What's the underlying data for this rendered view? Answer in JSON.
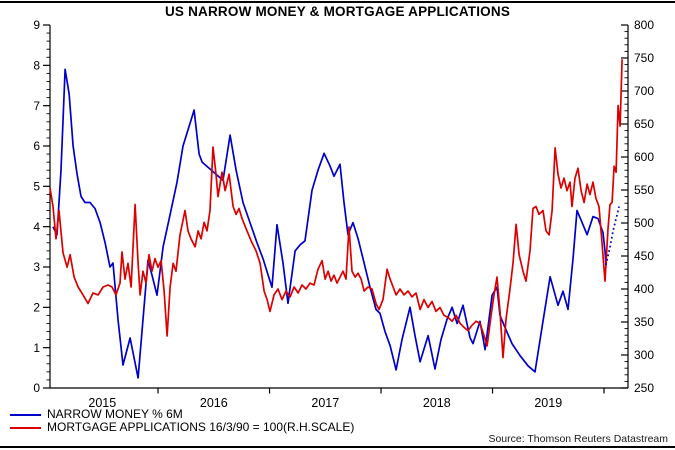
{
  "title": "US NARROW MONEY & MORTGAGE APPLICATIONS",
  "source_note": "Source: Thomson Reuters Datastream",
  "legend": [
    {
      "label": "NARROW MONEY % 6M",
      "color": "#0000cc",
      "line_style": "solid"
    },
    {
      "label": "MORTGAGE APPLICATIONS 16/3/90 = 100(R.H.SCALE)",
      "color": "#dd0000",
      "line_style": "solid"
    }
  ],
  "chart_data": {
    "type": "line",
    "title": "US NARROW MONEY & MORTGAGE APPLICATIONS",
    "grid": false,
    "legend_position": "bottom-left",
    "x_domain": [
      2015.031,
      2020.215
    ],
    "x_axis": {
      "boundary_tick_years": [
        2016,
        2017,
        2018,
        2019,
        2020
      ],
      "year_labels": [
        {
          "label": "2015",
          "center": 2015.5
        },
        {
          "label": "2016",
          "center": 2016.5
        },
        {
          "label": "2017",
          "center": 2017.5
        },
        {
          "label": "2018",
          "center": 2018.5
        },
        {
          "label": "2019",
          "center": 2019.5
        }
      ]
    },
    "left_axis": {
      "min": 0,
      "max": 9,
      "ticks": [
        0,
        1,
        2,
        3,
        4,
        5,
        6,
        7,
        8,
        9
      ],
      "minor_step": 0.2
    },
    "right_axis": {
      "min": 250,
      "max": 800,
      "ticks": [
        250,
        300,
        350,
        400,
        450,
        500,
        550,
        600,
        650,
        700,
        750,
        800
      ],
      "minor_step": 10
    },
    "series": [
      {
        "name": "NARROW MONEY % 6M",
        "axis": "left",
        "color": "#0000cc",
        "points": [
          [
            2015.058,
            4.0
          ],
          [
            2015.094,
            3.8
          ],
          [
            2015.13,
            5.4
          ],
          [
            2015.166,
            7.9
          ],
          [
            2015.202,
            7.3
          ],
          [
            2015.238,
            6.0
          ],
          [
            2015.274,
            5.3
          ],
          [
            2015.309,
            4.75
          ],
          [
            2015.345,
            4.6
          ],
          [
            2015.39,
            4.6
          ],
          [
            2015.435,
            4.45
          ],
          [
            2015.48,
            4.1
          ],
          [
            2015.525,
            3.6
          ],
          [
            2015.569,
            3.0
          ],
          [
            2015.596,
            3.1
          ],
          [
            2015.641,
            1.7
          ],
          [
            2015.686,
            0.57
          ],
          [
            2015.749,
            1.24
          ],
          [
            2015.821,
            0.25
          ],
          [
            2015.865,
            1.7
          ],
          [
            2015.91,
            3.17
          ],
          [
            2015.946,
            2.8
          ],
          [
            2015.991,
            2.3
          ],
          [
            2016.045,
            3.5
          ],
          [
            2016.108,
            4.3
          ],
          [
            2016.17,
            5.1
          ],
          [
            2016.224,
            6.0
          ],
          [
            2016.269,
            6.4
          ],
          [
            2016.323,
            6.89
          ],
          [
            2016.368,
            5.8
          ],
          [
            2016.395,
            5.6
          ],
          [
            2016.583,
            5.15
          ],
          [
            2016.646,
            6.27
          ],
          [
            2016.7,
            5.4
          ],
          [
            2016.762,
            4.6
          ],
          [
            2016.825,
            4.1
          ],
          [
            2016.888,
            3.6
          ],
          [
            2016.942,
            3.2
          ],
          [
            2016.987,
            2.8
          ],
          [
            2017.022,
            2.5
          ],
          [
            2017.067,
            4.05
          ],
          [
            2017.121,
            3.1
          ],
          [
            2017.166,
            2.1
          ],
          [
            2017.229,
            3.4
          ],
          [
            2017.274,
            3.55
          ],
          [
            2017.318,
            3.65
          ],
          [
            2017.381,
            4.9
          ],
          [
            2017.435,
            5.4
          ],
          [
            2017.489,
            5.82
          ],
          [
            2017.543,
            5.5
          ],
          [
            2017.578,
            5.25
          ],
          [
            2017.632,
            5.55
          ],
          [
            2017.668,
            4.6
          ],
          [
            2017.704,
            3.8
          ],
          [
            2017.749,
            4.1
          ],
          [
            2017.794,
            3.7
          ],
          [
            2017.839,
            3.2
          ],
          [
            2017.901,
            2.5
          ],
          [
            2017.955,
            1.95
          ],
          [
            2017.991,
            1.85
          ],
          [
            2018.036,
            1.4
          ],
          [
            2018.081,
            1.05
          ],
          [
            2018.135,
            0.45
          ],
          [
            2018.188,
            1.2
          ],
          [
            2018.26,
            2.0
          ],
          [
            2018.305,
            1.3
          ],
          [
            2018.35,
            0.65
          ],
          [
            2018.422,
            1.3
          ],
          [
            2018.484,
            0.47
          ],
          [
            2018.538,
            1.2
          ],
          [
            2018.592,
            1.7
          ],
          [
            2018.637,
            2.0
          ],
          [
            2018.682,
            1.6
          ],
          [
            2018.735,
            2.05
          ],
          [
            2018.798,
            1.25
          ],
          [
            2018.825,
            1.1
          ],
          [
            2018.888,
            1.65
          ],
          [
            2018.933,
            0.95
          ],
          [
            2018.996,
            2.3
          ],
          [
            2019.04,
            2.5
          ],
          [
            2019.067,
            1.8
          ],
          [
            2019.112,
            1.5
          ],
          [
            2019.175,
            1.1
          ],
          [
            2019.247,
            0.8
          ],
          [
            2019.318,
            0.55
          ],
          [
            2019.381,
            0.4
          ],
          [
            2019.444,
            1.5
          ],
          [
            2019.516,
            2.76
          ],
          [
            2019.587,
            2.05
          ],
          [
            2019.632,
            2.4
          ],
          [
            2019.677,
            1.95
          ],
          [
            2019.722,
            3.2
          ],
          [
            2019.758,
            4.4
          ],
          [
            2019.803,
            4.1
          ],
          [
            2019.848,
            3.8
          ],
          [
            2019.901,
            4.25
          ],
          [
            2019.946,
            4.2
          ],
          [
            2019.991,
            3.85
          ],
          [
            2020.009,
            3.4
          ],
          [
            2020.018,
            3.05
          ]
        ],
        "forecast_dotted_points": [
          [
            2020.018,
            3.05
          ],
          [
            2020.054,
            3.5
          ],
          [
            2020.081,
            3.9
          ],
          [
            2020.108,
            4.2
          ],
          [
            2020.135,
            4.5
          ]
        ]
      },
      {
        "name": "MORTGAGE APPLICATIONS 16/3/90 = 100(R.H.SCALE)",
        "axis": "right",
        "color": "#dd0000",
        "points": [
          [
            2015.031,
            553
          ],
          [
            2015.058,
            525
          ],
          [
            2015.085,
            476
          ],
          [
            2015.112,
            519
          ],
          [
            2015.148,
            455
          ],
          [
            2015.184,
            433
          ],
          [
            2015.211,
            452
          ],
          [
            2015.247,
            418
          ],
          [
            2015.283,
            403
          ],
          [
            2015.327,
            391
          ],
          [
            2015.372,
            378
          ],
          [
            2015.417,
            394
          ],
          [
            2015.462,
            391
          ],
          [
            2015.507,
            403
          ],
          [
            2015.551,
            406
          ],
          [
            2015.587,
            403
          ],
          [
            2015.623,
            391
          ],
          [
            2015.659,
            409
          ],
          [
            2015.677,
            456
          ],
          [
            2015.704,
            415
          ],
          [
            2015.731,
            439
          ],
          [
            2015.758,
            403
          ],
          [
            2015.794,
            528
          ],
          [
            2015.821,
            439
          ],
          [
            2015.839,
            391
          ],
          [
            2015.865,
            427
          ],
          [
            2015.892,
            409
          ],
          [
            2015.919,
            452
          ],
          [
            2015.946,
            427
          ],
          [
            2015.973,
            446
          ],
          [
            2016.0,
            433
          ],
          [
            2016.027,
            443
          ],
          [
            2016.054,
            397
          ],
          [
            2016.081,
            329
          ],
          [
            2016.108,
            403
          ],
          [
            2016.135,
            439
          ],
          [
            2016.161,
            427
          ],
          [
            2016.197,
            482
          ],
          [
            2016.242,
            519
          ],
          [
            2016.269,
            488
          ],
          [
            2016.296,
            476
          ],
          [
            2016.332,
            464
          ],
          [
            2016.359,
            488
          ],
          [
            2016.386,
            476
          ],
          [
            2016.413,
            501
          ],
          [
            2016.439,
            488
          ],
          [
            2016.466,
            519
          ],
          [
            2016.493,
            615
          ],
          [
            2016.52,
            574
          ],
          [
            2016.538,
            540
          ],
          [
            2016.574,
            577
          ],
          [
            2016.601,
            549
          ],
          [
            2016.637,
            574
          ],
          [
            2016.673,
            525
          ],
          [
            2016.7,
            513
          ],
          [
            2016.726,
            522
          ],
          [
            2016.753,
            507
          ],
          [
            2016.798,
            488
          ],
          [
            2016.843,
            470
          ],
          [
            2016.879,
            458
          ],
          [
            2016.915,
            439
          ],
          [
            2016.951,
            397
          ],
          [
            2016.978,
            384
          ],
          [
            2017.004,
            366
          ],
          [
            2017.04,
            391
          ],
          [
            2017.076,
            400
          ],
          [
            2017.112,
            384
          ],
          [
            2017.148,
            397
          ],
          [
            2017.184,
            388
          ],
          [
            2017.22,
            403
          ],
          [
            2017.256,
            394
          ],
          [
            2017.291,
            406
          ],
          [
            2017.327,
            400
          ],
          [
            2017.363,
            409
          ],
          [
            2017.399,
            406
          ],
          [
            2017.435,
            430
          ],
          [
            2017.471,
            443
          ],
          [
            2017.498,
            415
          ],
          [
            2017.525,
            427
          ],
          [
            2017.552,
            412
          ],
          [
            2017.578,
            421
          ],
          [
            2017.605,
            409
          ],
          [
            2017.632,
            418
          ],
          [
            2017.659,
            427
          ],
          [
            2017.686,
            415
          ],
          [
            2017.713,
            494
          ],
          [
            2017.74,
            427
          ],
          [
            2017.767,
            418
          ],
          [
            2017.794,
            424
          ],
          [
            2017.821,
            415
          ],
          [
            2017.848,
            397
          ],
          [
            2017.883,
            403
          ],
          [
            2017.919,
            400
          ],
          [
            2017.955,
            378
          ],
          [
            2017.982,
            369
          ],
          [
            2018.018,
            384
          ],
          [
            2018.054,
            430
          ],
          [
            2018.081,
            415
          ],
          [
            2018.108,
            403
          ],
          [
            2018.135,
            391
          ],
          [
            2018.17,
            400
          ],
          [
            2018.206,
            391
          ],
          [
            2018.242,
            397
          ],
          [
            2018.278,
            388
          ],
          [
            2018.314,
            394
          ],
          [
            2018.35,
            369
          ],
          [
            2018.385,
            384
          ],
          [
            2018.421,
            372
          ],
          [
            2018.457,
            381
          ],
          [
            2018.493,
            366
          ],
          [
            2018.529,
            372
          ],
          [
            2018.565,
            360
          ],
          [
            2018.601,
            357
          ],
          [
            2018.637,
            351
          ],
          [
            2018.673,
            360
          ],
          [
            2018.708,
            348
          ],
          [
            2018.744,
            342
          ],
          [
            2018.78,
            337
          ],
          [
            2018.816,
            345
          ],
          [
            2018.852,
            351
          ],
          [
            2018.888,
            348
          ],
          [
            2018.924,
            329
          ],
          [
            2018.951,
            314
          ],
          [
            2018.987,
            360
          ],
          [
            2019.013,
            391
          ],
          [
            2019.04,
            418
          ],
          [
            2019.067,
            366
          ],
          [
            2019.094,
            296
          ],
          [
            2019.121,
            354
          ],
          [
            2019.157,
            400
          ],
          [
            2019.184,
            439
          ],
          [
            2019.211,
            498
          ],
          [
            2019.238,
            452
          ],
          [
            2019.273,
            427
          ],
          [
            2019.3,
            412
          ],
          [
            2019.336,
            458
          ],
          [
            2019.363,
            522
          ],
          [
            2019.39,
            525
          ],
          [
            2019.417,
            513
          ],
          [
            2019.453,
            519
          ],
          [
            2019.48,
            488
          ],
          [
            2019.507,
            482
          ],
          [
            2019.534,
            519
          ],
          [
            2019.561,
            614
          ],
          [
            2019.587,
            574
          ],
          [
            2019.614,
            553
          ],
          [
            2019.641,
            568
          ],
          [
            2019.668,
            549
          ],
          [
            2019.695,
            562
          ],
          [
            2019.713,
            525
          ],
          [
            2019.74,
            568
          ],
          [
            2019.767,
            583
          ],
          [
            2019.794,
            549
          ],
          [
            2019.821,
            531
          ],
          [
            2019.848,
            559
          ],
          [
            2019.874,
            543
          ],
          [
            2019.901,
            562
          ],
          [
            2019.928,
            537
          ],
          [
            2019.955,
            525
          ],
          [
            2019.982,
            470
          ],
          [
            2020.009,
            412
          ],
          [
            2020.036,
            491
          ],
          [
            2020.054,
            528
          ],
          [
            2020.072,
            531
          ],
          [
            2020.09,
            586
          ],
          [
            2020.108,
            577
          ],
          [
            2020.126,
            678
          ],
          [
            2020.144,
            647
          ],
          [
            2020.162,
            748
          ]
        ]
      }
    ]
  }
}
